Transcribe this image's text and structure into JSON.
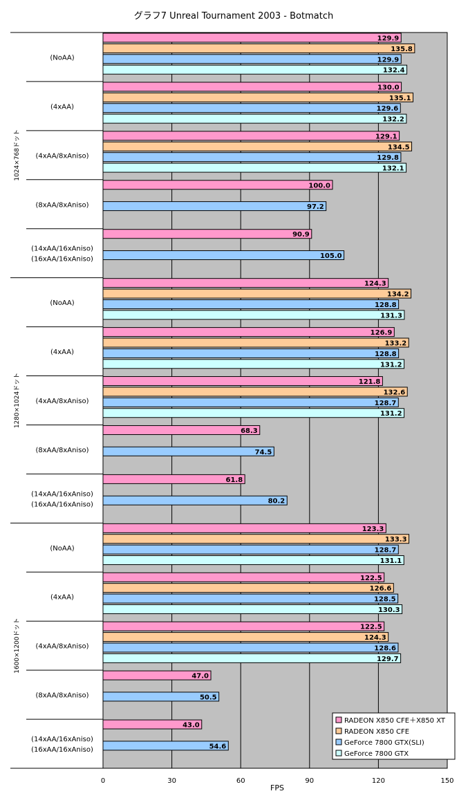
{
  "chart_data": {
    "type": "bar",
    "orientation": "horizontal",
    "title": "グラフ7  Unreal Tournament 2003 - Botmatch",
    "xlabel": "FPS",
    "ylabel": "",
    "xlim": [
      0,
      150
    ],
    "xticks": [
      "0",
      "30",
      "60",
      "90",
      "120",
      "150"
    ],
    "grid": true,
    "legend_position": "bottom-right",
    "series": [
      {
        "name": "RADEON X850 CFE＋X850 XT",
        "color": "#ff99cc"
      },
      {
        "name": "RADEON X850 CFE",
        "color": "#ffcc99"
      },
      {
        "name": "GeForce 7800 GTX(SLI)",
        "color": "#99ccff"
      },
      {
        "name": "GeForce 7800 GTX",
        "color": "#ccffff"
      }
    ],
    "groups": [
      {
        "label": "1024×768ドット",
        "categories": [
          {
            "label": [
              "(NoAA)"
            ],
            "values": [
              129.9,
              135.8,
              129.9,
              132.4
            ]
          },
          {
            "label": [
              "(4xAA)"
            ],
            "values": [
              130.0,
              135.1,
              129.6,
              132.2
            ]
          },
          {
            "label": [
              "(4xAA/8xAniso)"
            ],
            "values": [
              129.1,
              134.5,
              129.8,
              132.1
            ]
          },
          {
            "label": [
              "(8xAA/8xAniso)"
            ],
            "values": [
              100.0,
              null,
              97.2,
              null
            ]
          },
          {
            "label": [
              "(14xAA/16xAniso)",
              "(16xAA/16xAniso)"
            ],
            "values": [
              90.9,
              null,
              105.0,
              null
            ]
          }
        ]
      },
      {
        "label": "1280×1024ドット",
        "categories": [
          {
            "label": [
              "(NoAA)"
            ],
            "values": [
              124.3,
              134.2,
              128.8,
              131.3
            ]
          },
          {
            "label": [
              "(4xAA)"
            ],
            "values": [
              126.9,
              133.2,
              128.8,
              131.2
            ]
          },
          {
            "label": [
              "(4xAA/8xAniso)"
            ],
            "values": [
              121.8,
              132.6,
              128.7,
              131.2
            ]
          },
          {
            "label": [
              "(8xAA/8xAniso)"
            ],
            "values": [
              68.3,
              null,
              74.5,
              null
            ]
          },
          {
            "label": [
              "(14xAA/16xAniso)",
              "(16xAA/16xAniso)"
            ],
            "values": [
              61.8,
              null,
              80.2,
              null
            ]
          }
        ]
      },
      {
        "label": "1600×1200ドット",
        "categories": [
          {
            "label": [
              "(NoAA)"
            ],
            "values": [
              123.3,
              133.3,
              128.7,
              131.1
            ]
          },
          {
            "label": [
              "(4xAA)"
            ],
            "values": [
              122.5,
              126.6,
              128.5,
              130.3
            ]
          },
          {
            "label": [
              "(4xAA/8xAniso)"
            ],
            "values": [
              122.5,
              124.3,
              128.6,
              129.7
            ]
          },
          {
            "label": [
              "(8xAA/8xAniso)"
            ],
            "values": [
              47.0,
              null,
              50.5,
              null
            ]
          },
          {
            "label": [
              "(14xAA/16xAniso)",
              "(16xAA/16xAniso)"
            ],
            "values": [
              43.0,
              null,
              54.6,
              null
            ]
          }
        ]
      }
    ]
  }
}
